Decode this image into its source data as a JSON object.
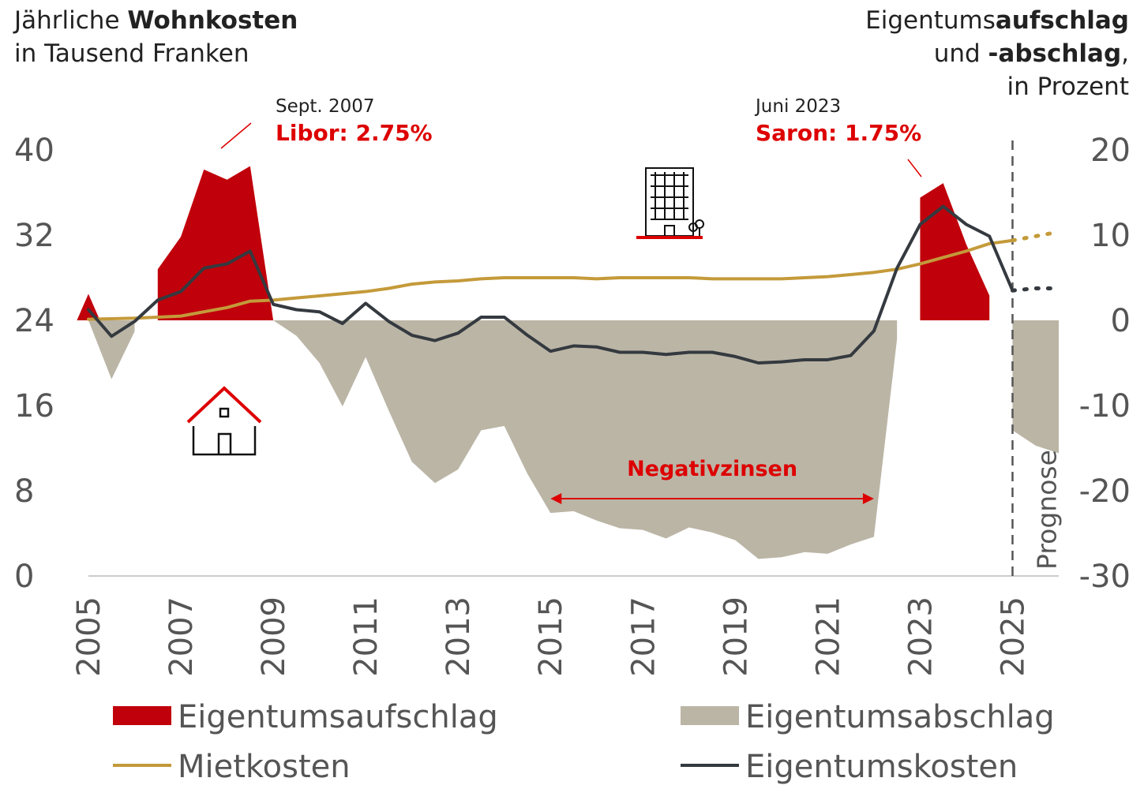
{
  "chart_data": {
    "type": "area-line",
    "y_title": [
      [
        {
          "text": "Jährliche "
        },
        {
          "text": "Wohnkosten",
          "bold": true
        }
      ],
      [
        {
          "text": "in Tausend Franken"
        }
      ]
    ],
    "y2_title": [
      [
        {
          "text": "Eigentums"
        },
        {
          "text": "aufschlag",
          "bold": true
        }
      ],
      [
        {
          "text": "und "
        },
        {
          "text": "-abschlag",
          "bold": true
        },
        {
          "text": ","
        }
      ],
      [
        {
          "text": "in Prozent"
        }
      ]
    ],
    "x": [
      2005,
      2005.5,
      2006,
      2006.5,
      2007,
      2007.5,
      2008,
      2008.5,
      2009,
      2009.5,
      2010,
      2010.5,
      2011,
      2011.5,
      2012,
      2012.5,
      2013,
      2013.5,
      2014,
      2014.5,
      2015,
      2015.5,
      2016,
      2016.5,
      2017,
      2017.5,
      2018,
      2018.5,
      2019,
      2019.5,
      2020,
      2020.5,
      2021,
      2021.5,
      2022,
      2022.5,
      2023,
      2023.5,
      2024,
      2024.5,
      2025,
      2025.5,
      2026
    ],
    "series": [
      {
        "name": "Eigentumsaufschlag",
        "kind": "area",
        "axis": "y2",
        "color": "#c0000b",
        "values": [
          3.1,
          null,
          null,
          6.0,
          9.8,
          17.7,
          16.5,
          18.1,
          0,
          null,
          null,
          null,
          null,
          null,
          null,
          null,
          null,
          null,
          null,
          null,
          null,
          null,
          null,
          null,
          null,
          null,
          null,
          null,
          null,
          null,
          null,
          null,
          null,
          null,
          null,
          null,
          14.4,
          16.1,
          8.9,
          2.9,
          null,
          null,
          null
        ]
      },
      {
        "name": "Eigentumsabschlag",
        "kind": "area",
        "axis": "y2",
        "color": "#bbb5a6",
        "values": [
          0,
          -6.9,
          -1.3,
          null,
          null,
          null,
          null,
          null,
          0,
          -1.8,
          -5,
          -10.1,
          -4.3,
          -10.6,
          -16.6,
          -19.1,
          -17.5,
          -12.9,
          -12.4,
          -18,
          -22.6,
          -22.4,
          -23.5,
          -24.4,
          -24.6,
          -25.6,
          -24.3,
          -24.9,
          -25.8,
          -28,
          -27.8,
          -27.2,
          -27.4,
          -26.3,
          -25.4,
          -2.2,
          null,
          null,
          null,
          null,
          -12.9,
          -14.7,
          -15.6
        ]
      },
      {
        "name": "Mietkosten",
        "kind": "line",
        "color": "#c49a3a",
        "values": [
          24.1,
          24.15,
          24.2,
          24.3,
          24.4,
          24.8,
          25.2,
          25.8,
          25.9,
          26.1,
          26.3,
          26.5,
          26.7,
          27.0,
          27.4,
          27.6,
          27.7,
          27.9,
          28.0,
          28.0,
          28.0,
          28.0,
          27.9,
          28.0,
          28.0,
          28.0,
          28.0,
          27.9,
          27.9,
          27.9,
          27.9,
          28.0,
          28.1,
          28.3,
          28.5,
          28.8,
          29.3,
          29.9,
          30.5,
          31.2,
          31.5,
          31.9,
          32.3
        ]
      },
      {
        "name": "Eigentumskosten",
        "kind": "line",
        "color": "#343a3f",
        "values": [
          25.0,
          22.5,
          23.9,
          25.9,
          26.7,
          28.9,
          29.3,
          30.5,
          25.5,
          25.0,
          24.8,
          23.7,
          25.6,
          23.9,
          22.6,
          22.1,
          22.8,
          24.3,
          24.3,
          22.6,
          21.1,
          21.6,
          21.5,
          21.0,
          21.0,
          20.8,
          21.0,
          21.0,
          20.6,
          20.0,
          20.1,
          20.3,
          20.3,
          20.7,
          23.0,
          28.9,
          33.0,
          34.7,
          33.0,
          31.9,
          26.8,
          27.0,
          27.0
        ]
      }
    ],
    "xlim": [
      2005,
      2026
    ],
    "xticks": [
      2005,
      2007,
      2009,
      2011,
      2013,
      2015,
      2017,
      2019,
      2021,
      2023,
      2025
    ],
    "ylim": [
      0,
      40
    ],
    "yticks": [
      0,
      8,
      16,
      24,
      32,
      40
    ],
    "y2lim": [
      -30,
      20
    ],
    "y2ticks": [
      -30,
      -20,
      -10,
      0,
      10,
      20
    ],
    "forecast": {
      "x": 2025,
      "label": "Prognose"
    },
    "annotations": [
      {
        "date": "Sept. 2007",
        "text": "Libor: 2.75%"
      },
      {
        "date": "Juni 2023",
        "text": "Saron: 1.75%"
      }
    ],
    "range_label": {
      "text": "Negativzinsen",
      "from": 2015,
      "to": 2022
    },
    "legend": "bottom"
  }
}
